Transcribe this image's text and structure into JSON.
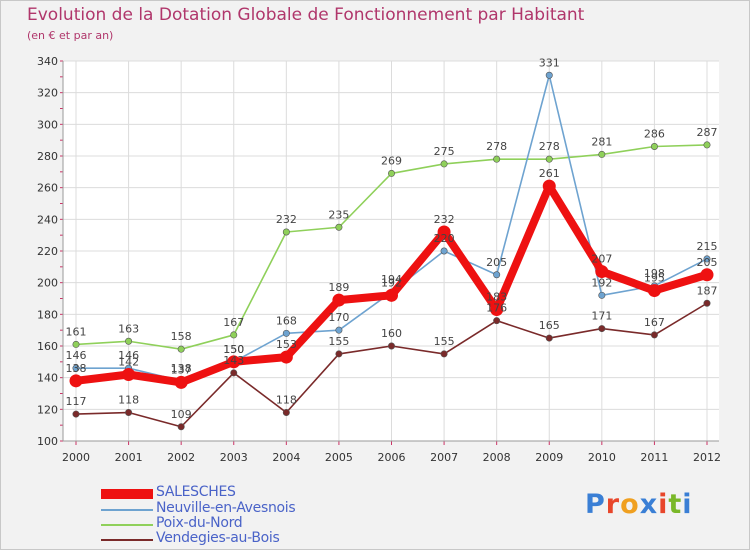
{
  "header": {
    "title": "Evolution de la Dotation Globale de Fonctionnement par Habitant",
    "subtitle": "(en € et par an)"
  },
  "logo": {
    "text": "Proxiti",
    "letter_colors": [
      "#3a7fd5",
      "#e8462b",
      "#f0a020",
      "#3a7fd5",
      "#e8462b",
      "#7ab829",
      "#3a7fd5"
    ]
  },
  "chart_data": {
    "type": "line",
    "title": "Evolution de la Dotation Globale de Fonctionnement par Habitant",
    "subtitle": "(en € et par an)",
    "x": [
      2000,
      2001,
      2002,
      2003,
      2004,
      2005,
      2006,
      2007,
      2008,
      2009,
      2010,
      2011,
      2012
    ],
    "x_tick_labels": [
      "2000",
      "2001",
      "2002",
      "2003",
      "2004",
      "2005",
      "2006",
      "2007",
      "2008",
      "2009",
      "2010",
      "2011",
      "2012"
    ],
    "y_ticks": [
      100,
      120,
      140,
      160,
      180,
      200,
      220,
      240,
      260,
      280,
      300,
      320,
      340
    ],
    "ylim": [
      100,
      340
    ],
    "grid": true,
    "legend_position": "bottom-left",
    "series": [
      {
        "name": "Vendegies-au-Bois",
        "color": "#7a2a2a",
        "values": [
          117,
          118,
          109,
          143,
          118,
          155,
          160,
          155,
          176,
          165,
          171,
          167,
          187
        ],
        "labels": [
          "117",
          "118",
          "109",
          "143",
          "118",
          "155",
          "160",
          "155",
          "176",
          "165",
          "171",
          "167",
          "187"
        ]
      },
      {
        "name": "Poix-du-Nord",
        "color": "#8fd05a",
        "values": [
          161,
          163,
          158,
          167,
          232,
          235,
          269,
          275,
          278,
          278,
          281,
          286,
          287
        ],
        "labels": [
          "161",
          "163",
          "158",
          "167",
          "232",
          "235",
          "269",
          "275",
          "278",
          "278",
          "281",
          "286",
          "287"
        ]
      },
      {
        "name": "Neuville-en-Avesnois",
        "color": "#6ea3d0",
        "values": [
          146,
          146,
          138,
          150,
          168,
          170,
          194,
          220,
          205,
          331,
          192,
          198,
          215
        ],
        "labels": [
          "146",
          "146",
          "138",
          "150",
          "168",
          "170",
          "194",
          "220",
          "205",
          "331",
          "192",
          "198",
          "215"
        ]
      },
      {
        "name": "SALESCHES",
        "color": "#ee1111",
        "values": [
          138,
          142,
          137,
          150,
          153,
          189,
          192,
          232,
          183,
          261,
          207,
          195,
          205
        ],
        "labels": [
          "138",
          "142",
          "137",
          "150",
          "153",
          "189",
          "192",
          "232",
          "183",
          "261",
          "207",
          "195",
          "205"
        ]
      }
    ]
  },
  "legend": [
    {
      "name": "SALESCHES",
      "color": "#ee1111"
    },
    {
      "name": "Neuville-en-Avesnois",
      "color": "#6ea3d0"
    },
    {
      "name": "Poix-du-Nord",
      "color": "#8fd05a"
    },
    {
      "name": "Vendegies-au-Bois",
      "color": "#7a2a2a"
    }
  ]
}
